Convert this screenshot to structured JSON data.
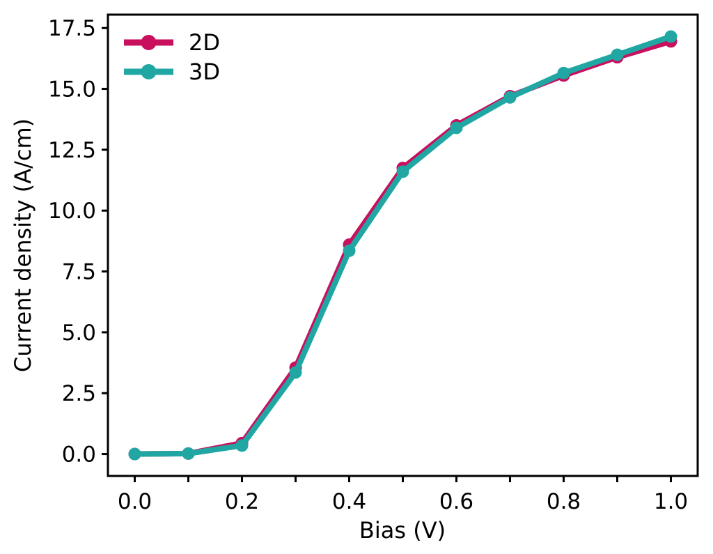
{
  "figure": {
    "background": "#ffffff",
    "axis_color": "#000000"
  },
  "chart_data": {
    "type": "line",
    "title": "",
    "xlabel": "Bias (V)",
    "ylabel": "Current density (A/cm)",
    "x": [
      0.0,
      0.1,
      0.2,
      0.3,
      0.4,
      0.5,
      0.6,
      0.7,
      0.8,
      0.9,
      1.0
    ],
    "series": [
      {
        "name": "2D",
        "color": "#C8105E",
        "values": [
          0.0,
          0.02,
          0.45,
          3.55,
          8.6,
          11.75,
          13.5,
          14.7,
          15.55,
          16.3,
          16.95
        ]
      },
      {
        "name": "3D",
        "color": "#20A7A4",
        "values": [
          0.0,
          0.02,
          0.35,
          3.35,
          8.35,
          11.6,
          13.4,
          14.65,
          15.65,
          16.4,
          17.15
        ]
      }
    ],
    "xlim": [
      -0.05,
      1.05
    ],
    "ylim": [
      -0.9,
      18.05
    ],
    "x_ticks": [
      0.0,
      0.1,
      0.2,
      0.3,
      0.4,
      0.5,
      0.6,
      0.7,
      0.8,
      0.9,
      1.0
    ],
    "x_tick_labels": [
      "0.0",
      "",
      "0.2",
      "",
      "0.4",
      "",
      "0.6",
      "",
      "0.8",
      "",
      "1.0"
    ],
    "y_ticks": [
      0.0,
      2.5,
      5.0,
      7.5,
      10.0,
      12.5,
      15.0,
      17.5
    ],
    "y_tick_labels": [
      "0.0",
      "2.5",
      "5.0",
      "7.5",
      "10.0",
      "12.5",
      "15.0",
      "17.5"
    ],
    "legend": {
      "position": "top-left",
      "entries": [
        "2D",
        "3D"
      ]
    },
    "grid": false,
    "line_width": 8,
    "marker": "circle",
    "marker_radius": 9
  }
}
